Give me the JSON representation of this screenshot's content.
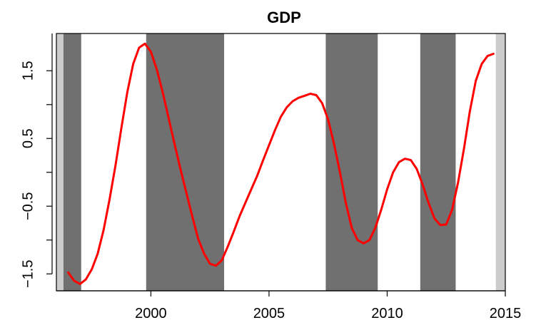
{
  "chart_data": {
    "type": "line",
    "title": "GDP",
    "xlabel": "",
    "ylabel": "",
    "xlim": [
      1996.0,
      2015.0
    ],
    "ylim": [
      -1.75,
      2.05
    ],
    "x_ticks": [
      2000,
      2005,
      2010,
      2015
    ],
    "x_tick_labels": [
      "2000",
      "2005",
      "2010",
      "2015"
    ],
    "y_ticks": [
      -1.5,
      -0.5,
      0.5,
      1.5
    ],
    "y_tick_labels": [
      "−1.5",
      "−0.5",
      "0.5",
      "1.5"
    ],
    "grid": false,
    "legend": "none",
    "colors": {
      "line": "#ff0000",
      "shade_dark": "#707070",
      "shade_light": "#cccccc",
      "axis": "#000000"
    },
    "shaded_regions": [
      {
        "start": 1996.0,
        "end": 1996.3,
        "shade": "light"
      },
      {
        "start": 1996.3,
        "end": 1997.05,
        "shade": "dark"
      },
      {
        "start": 1999.8,
        "end": 2003.1,
        "shade": "dark"
      },
      {
        "start": 2007.4,
        "end": 2009.6,
        "shade": "dark"
      },
      {
        "start": 2011.4,
        "end": 2012.9,
        "shade": "dark"
      },
      {
        "start": 2014.6,
        "end": 2015.0,
        "shade": "light"
      }
    ],
    "series": [
      {
        "x": [
          1996.5,
          1996.75,
          1997.0,
          1997.25,
          1997.5,
          1997.75,
          1998.0,
          1998.25,
          1998.5,
          1998.75,
          1999.0,
          1999.25,
          1999.5,
          1999.75,
          2000.0,
          2000.25,
          2000.5,
          2000.75,
          2001.0,
          2001.25,
          2001.5,
          2001.75,
          2002.0,
          2002.25,
          2002.5,
          2002.75,
          2003.0,
          2003.25,
          2003.5,
          2003.75,
          2004.0,
          2004.25,
          2004.5,
          2004.75,
          2005.0,
          2005.25,
          2005.5,
          2005.75,
          2006.0,
          2006.25,
          2006.5,
          2006.75,
          2007.0,
          2007.25,
          2007.5,
          2007.75,
          2008.0,
          2008.25,
          2008.5,
          2008.75,
          2009.0,
          2009.25,
          2009.5,
          2009.75,
          2010.0,
          2010.25,
          2010.5,
          2010.75,
          2011.0,
          2011.25,
          2011.5,
          2011.75,
          2012.0,
          2012.25,
          2012.5,
          2012.75,
          2013.0,
          2013.25,
          2013.5,
          2013.75,
          2014.0,
          2014.25,
          2014.5
        ],
        "values": [
          -1.48,
          -1.6,
          -1.65,
          -1.58,
          -1.43,
          -1.2,
          -0.85,
          -0.4,
          0.1,
          0.65,
          1.18,
          1.6,
          1.84,
          1.9,
          1.78,
          1.52,
          1.18,
          0.8,
          0.42,
          0.05,
          -0.3,
          -0.65,
          -0.98,
          -1.2,
          -1.35,
          -1.38,
          -1.3,
          -1.1,
          -0.88,
          -0.65,
          -0.45,
          -0.25,
          -0.05,
          0.18,
          0.4,
          0.62,
          0.82,
          0.96,
          1.05,
          1.1,
          1.13,
          1.16,
          1.14,
          1.02,
          0.78,
          0.42,
          0.0,
          -0.45,
          -0.82,
          -1.0,
          -1.05,
          -1.0,
          -0.82,
          -0.55,
          -0.25,
          0.0,
          0.15,
          0.2,
          0.18,
          0.05,
          -0.18,
          -0.45,
          -0.68,
          -0.78,
          -0.77,
          -0.55,
          -0.15,
          0.35,
          0.9,
          1.35,
          1.6,
          1.72,
          1.75
        ]
      }
    ]
  }
}
